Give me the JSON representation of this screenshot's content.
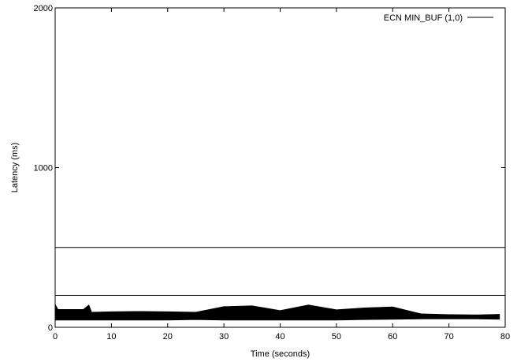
{
  "chart_data": {
    "type": "line",
    "title": "",
    "xlabel": "Time (seconds)",
    "ylabel": "Latency (ms)",
    "xlim": [
      0,
      80
    ],
    "ylim": [
      0,
      2000
    ],
    "x_ticks": [
      0,
      10,
      20,
      30,
      40,
      50,
      60,
      70,
      80
    ],
    "y_ticks": [
      0,
      1000,
      2000
    ],
    "grid": false,
    "legend": "top-right",
    "series": [
      {
        "name": "ECN MIN_BUF (1,0)",
        "color": "#000000",
        "band": {
          "x": [
            0,
            0.5,
            1,
            2,
            3,
            4,
            5,
            6,
            6.5,
            10,
            15,
            20,
            25,
            30,
            35,
            40,
            45,
            50,
            55,
            60,
            65,
            70,
            75,
            79
          ],
          "lower": [
            45,
            45,
            45,
            45,
            45,
            45,
            45,
            45,
            45,
            45,
            45,
            45,
            48,
            45,
            45,
            45,
            45,
            45,
            48,
            50,
            52,
            52,
            52,
            50
          ],
          "upper": [
            145,
            112,
            112,
            112,
            112,
            112,
            112,
            140,
            95,
            98,
            100,
            98,
            95,
            130,
            135,
            105,
            140,
            110,
            122,
            128,
            85,
            80,
            78,
            82
          ]
        }
      }
    ],
    "reference_lines": [
      {
        "y": 500,
        "color": "#000000"
      },
      {
        "y": 200,
        "color": "#000000"
      }
    ]
  }
}
